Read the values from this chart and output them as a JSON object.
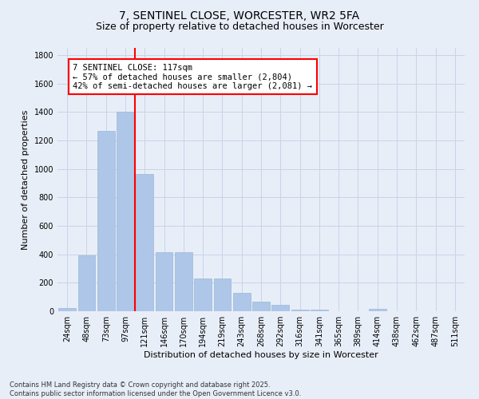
{
  "title_line1": "7, SENTINEL CLOSE, WORCESTER, WR2 5FA",
  "title_line2": "Size of property relative to detached houses in Worcester",
  "xlabel": "Distribution of detached houses by size in Worcester",
  "ylabel": "Number of detached properties",
  "categories": [
    "24sqm",
    "48sqm",
    "73sqm",
    "97sqm",
    "121sqm",
    "146sqm",
    "170sqm",
    "194sqm",
    "219sqm",
    "243sqm",
    "268sqm",
    "292sqm",
    "316sqm",
    "341sqm",
    "365sqm",
    "389sqm",
    "414sqm",
    "438sqm",
    "462sqm",
    "487sqm",
    "511sqm"
  ],
  "values": [
    25,
    395,
    1265,
    1400,
    965,
    415,
    415,
    230,
    230,
    130,
    65,
    45,
    10,
    10,
    0,
    0,
    15,
    0,
    0,
    0,
    0
  ],
  "bar_color": "#aec6e8",
  "bar_edge_color": "#9ab8d8",
  "vline_color": "red",
  "vline_x_index": 3.5,
  "annotation_text": "7 SENTINEL CLOSE: 117sqm\n← 57% of detached houses are smaller (2,804)\n42% of semi-detached houses are larger (2,081) →",
  "annotation_box_color": "white",
  "annotation_box_edge_color": "red",
  "ylim": [
    0,
    1850
  ],
  "yticks": [
    0,
    200,
    400,
    600,
    800,
    1000,
    1200,
    1400,
    1600,
    1800
  ],
  "grid_color": "#c8d4e8",
  "background_color": "#e8eef8",
  "footnote": "Contains HM Land Registry data © Crown copyright and database right 2025.\nContains public sector information licensed under the Open Government Licence v3.0.",
  "title_fontsize": 10,
  "subtitle_fontsize": 9,
  "tick_fontsize": 7,
  "label_fontsize": 8,
  "annotation_fontsize": 7.5,
  "footnote_fontsize": 6
}
